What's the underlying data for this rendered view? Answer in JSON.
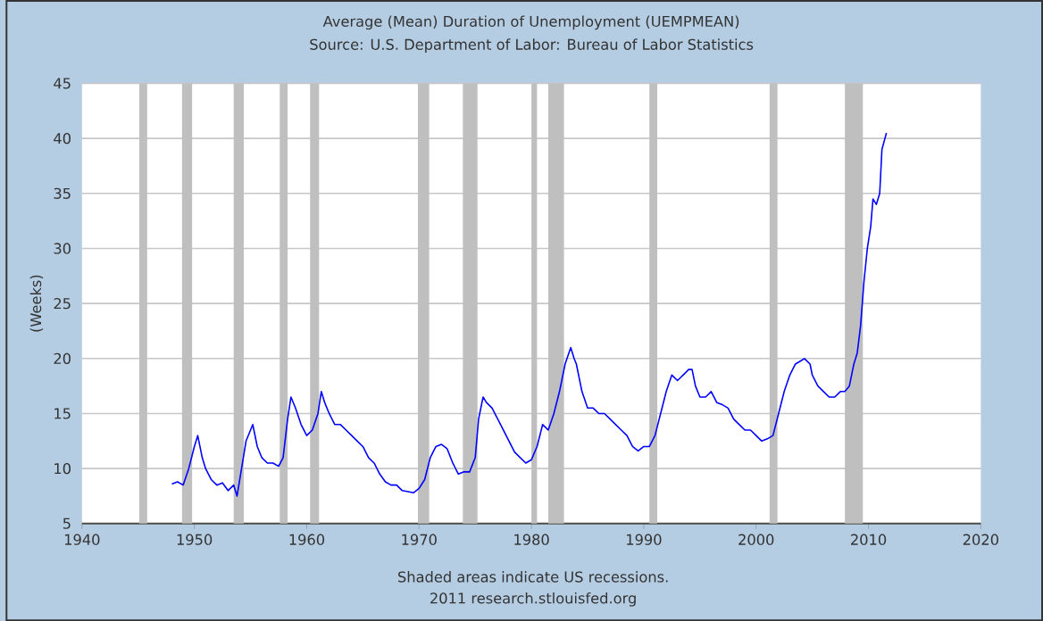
{
  "chart_data": {
    "type": "line",
    "title": "Average (Mean) Duration of Unemployment (UEMPMEAN)",
    "subtitle": "Source: U.S. Department of Labor: Bureau of Labor Statistics",
    "ylabel": "(Weeks)",
    "annotations": [
      "Shaded areas indicate US recessions.",
      "2011 research.stlouisfed.org"
    ],
    "xlim": [
      1940,
      2020
    ],
    "xticks": [
      1940,
      1950,
      1960,
      1970,
      1980,
      1990,
      2000,
      2010,
      2020
    ],
    "ylim": [
      5,
      45
    ],
    "yticks": [
      5,
      10,
      15,
      20,
      25,
      30,
      35,
      40,
      45
    ],
    "grid": "y",
    "bands": [
      {
        "axis": "x",
        "from": 1945.1,
        "to": 1945.8,
        "color": "#bfbfbf"
      },
      {
        "axis": "x",
        "from": 1948.9,
        "to": 1949.8,
        "color": "#bfbfbf"
      },
      {
        "axis": "x",
        "from": 1953.5,
        "to": 1954.4,
        "color": "#bfbfbf"
      },
      {
        "axis": "x",
        "from": 1957.6,
        "to": 1958.3,
        "color": "#bfbfbf"
      },
      {
        "axis": "x",
        "from": 1960.3,
        "to": 1961.1,
        "color": "#bfbfbf"
      },
      {
        "axis": "x",
        "from": 1969.9,
        "to": 1970.9,
        "color": "#bfbfbf"
      },
      {
        "axis": "x",
        "from": 1973.9,
        "to": 1975.2,
        "color": "#bfbfbf"
      },
      {
        "axis": "x",
        "from": 1980.0,
        "to": 1980.5,
        "color": "#bfbfbf"
      },
      {
        "axis": "x",
        "from": 1981.5,
        "to": 1982.9,
        "color": "#bfbfbf"
      },
      {
        "axis": "x",
        "from": 1990.5,
        "to": 1991.2,
        "color": "#bfbfbf"
      },
      {
        "axis": "x",
        "from": 2001.2,
        "to": 2001.9,
        "color": "#bfbfbf"
      },
      {
        "axis": "x",
        "from": 2007.9,
        "to": 2009.5,
        "color": "#bfbfbf"
      }
    ],
    "series": [
      {
        "color": "#0000ff",
        "x": [
          1948.0,
          1948.5,
          1949.0,
          1949.5,
          1950.0,
          1950.3,
          1950.7,
          1951.0,
          1951.5,
          1952.0,
          1952.5,
          1953.0,
          1953.5,
          1953.8,
          1954.2,
          1954.6,
          1955.0,
          1955.2,
          1955.6,
          1956.0,
          1956.5,
          1957.0,
          1957.5,
          1957.9,
          1958.3,
          1958.6,
          1959.0,
          1959.5,
          1960.0,
          1960.5,
          1961.0,
          1961.3,
          1961.6,
          1962.0,
          1962.5,
          1963.0,
          1963.5,
          1964.0,
          1964.5,
          1965.0,
          1965.5,
          1966.0,
          1966.5,
          1967.0,
          1967.5,
          1968.0,
          1968.5,
          1969.0,
          1969.5,
          1970.0,
          1970.5,
          1971.0,
          1971.5,
          1972.0,
          1972.5,
          1973.0,
          1973.5,
          1974.0,
          1974.5,
          1975.0,
          1975.3,
          1975.7,
          1976.0,
          1976.5,
          1977.0,
          1977.5,
          1978.0,
          1978.5,
          1979.0,
          1979.5,
          1980.0,
          1980.5,
          1981.0,
          1981.5,
          1982.0,
          1982.5,
          1983.0,
          1983.5,
          1983.8,
          1984.0,
          1984.5,
          1985.0,
          1985.5,
          1986.0,
          1986.5,
          1987.0,
          1987.5,
          1988.0,
          1988.5,
          1989.0,
          1989.5,
          1990.0,
          1990.5,
          1991.0,
          1991.5,
          1992.0,
          1992.5,
          1993.0,
          1993.5,
          1994.0,
          1994.3,
          1994.6,
          1995.0,
          1995.5,
          1996.0,
          1996.5,
          1997.0,
          1997.5,
          1998.0,
          1998.5,
          1999.0,
          1999.5,
          2000.0,
          2000.5,
          2001.0,
          2001.5,
          2002.0,
          2002.5,
          2003.0,
          2003.5,
          2004.0,
          2004.3,
          2004.8,
          2005.0,
          2005.5,
          2006.0,
          2006.5,
          2007.0,
          2007.5,
          2007.9,
          2008.3,
          2008.7,
          2009.0,
          2009.3,
          2009.6,
          2009.9,
          2010.2,
          2010.4,
          2010.7,
          2011.0,
          2011.2,
          2011.6
        ],
        "values": [
          8.6,
          8.8,
          8.5,
          10.0,
          12.0,
          13.0,
          11.0,
          10.0,
          9.0,
          8.5,
          8.7,
          8.0,
          8.5,
          7.5,
          10.0,
          12.5,
          13.5,
          14.0,
          12.0,
          11.0,
          10.5,
          10.5,
          10.2,
          11.0,
          14.5,
          16.5,
          15.5,
          14.0,
          13.0,
          13.5,
          15.0,
          17.0,
          16.0,
          15.0,
          14.0,
          14.0,
          13.5,
          13.0,
          12.5,
          12.0,
          11.0,
          10.5,
          9.5,
          8.8,
          8.5,
          8.5,
          8.0,
          7.9,
          7.8,
          8.2,
          9.0,
          11.0,
          12.0,
          12.2,
          11.8,
          10.5,
          9.5,
          9.7,
          9.7,
          11.0,
          14.5,
          16.5,
          16.0,
          15.5,
          14.5,
          13.5,
          12.5,
          11.5,
          11.0,
          10.5,
          10.8,
          12.0,
          14.0,
          13.5,
          15.0,
          17.0,
          19.5,
          21.0,
          20.0,
          19.5,
          17.0,
          15.5,
          15.5,
          15.0,
          15.0,
          14.5,
          14.0,
          13.5,
          13.0,
          12.0,
          11.6,
          12.0,
          12.0,
          13.0,
          15.0,
          17.0,
          18.5,
          18.0,
          18.5,
          19.0,
          19.0,
          17.5,
          16.5,
          16.5,
          17.0,
          16.0,
          15.8,
          15.5,
          14.5,
          14.0,
          13.5,
          13.5,
          13.0,
          12.5,
          12.7,
          13.0,
          15.0,
          17.0,
          18.5,
          19.5,
          19.8,
          20.0,
          19.5,
          18.5,
          17.5,
          17.0,
          16.5,
          16.5,
          17.0,
          17.0,
          17.5,
          19.5,
          20.5,
          23.0,
          27.0,
          30.0,
          32.0,
          34.5,
          34.0,
          35.0,
          39.0,
          40.5
        ]
      }
    ]
  }
}
